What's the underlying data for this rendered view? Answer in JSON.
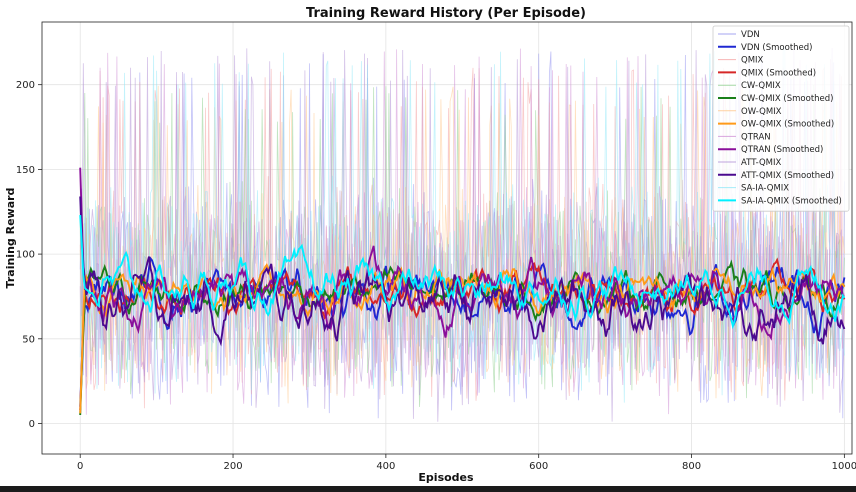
{
  "chart_data": {
    "type": "line",
    "title": "Training Reward History (Per Episode)",
    "xlabel": "Episodes",
    "ylabel": "Training Reward",
    "xlim": [
      -50,
      1010
    ],
    "ylim": [
      -18,
      237
    ],
    "xticks": [
      0,
      200,
      400,
      600,
      800,
      1000
    ],
    "yticks": [
      0,
      50,
      100,
      150,
      200
    ],
    "grid": true,
    "legend_position": "top-right",
    "episodes": 1000,
    "series": [
      {
        "name": "VDN",
        "color": "#8f8ff0",
        "kind": "raw",
        "mean": 75,
        "spread": 75,
        "floor": -5,
        "ceil": 222
      },
      {
        "name": "VDN (Smoothed)",
        "color": "#1f28d2",
        "kind": "smoothed",
        "mean": 76,
        "start": 10,
        "amplitude": 22
      },
      {
        "name": "QMIX",
        "color": "#f4a3a3",
        "kind": "raw",
        "mean": 78,
        "spread": 72,
        "floor": 4,
        "ceil": 210
      },
      {
        "name": "QMIX (Smoothed)",
        "color": "#d62728",
        "kind": "smoothed",
        "mean": 78,
        "start": 8,
        "amplitude": 16
      },
      {
        "name": "CW-QMIX",
        "color": "#8fcf8f",
        "kind": "raw",
        "mean": 78,
        "spread": 70,
        "floor": 4,
        "ceil": 200
      },
      {
        "name": "CW-QMIX (Smoothed)",
        "color": "#1a7f1a",
        "kind": "smoothed",
        "mean": 78,
        "start": 5,
        "amplitude": 15
      },
      {
        "name": "OW-QMIX",
        "color": "#ffc68a",
        "kind": "raw",
        "mean": 78,
        "spread": 70,
        "floor": 4,
        "ceil": 200
      },
      {
        "name": "OW-QMIX (Smoothed)",
        "color": "#ff9a1a",
        "kind": "smoothed",
        "mean": 78,
        "start": 6,
        "amplitude": 15
      },
      {
        "name": "QTRAN",
        "color": "#cf8fd6",
        "kind": "raw",
        "mean": 74,
        "spread": 74,
        "floor": -2,
        "ceil": 222
      },
      {
        "name": "QTRAN (Smoothed)",
        "color": "#8a0f9a",
        "kind": "smoothed",
        "mean": 76,
        "start": 151,
        "amplitude": 20
      },
      {
        "name": "ATT-QMIX",
        "color": "#b08fd6",
        "kind": "raw",
        "mean": 74,
        "spread": 74,
        "floor": -3,
        "ceil": 222
      },
      {
        "name": "ATT-QMIX (Smoothed)",
        "color": "#4b0a8f",
        "kind": "smoothed",
        "mean": 72,
        "start": 134,
        "amplitude": 24
      },
      {
        "name": "SA-IA-QMIX",
        "color": "#8fe8f8",
        "kind": "raw",
        "mean": 82,
        "spread": 70,
        "floor": 0,
        "ceil": 222
      },
      {
        "name": "SA-IA-QMIX (Smoothed)",
        "color": "#00f0ff",
        "kind": "smoothed",
        "mean": 80,
        "start": 123,
        "amplitude": 18
      }
    ]
  }
}
